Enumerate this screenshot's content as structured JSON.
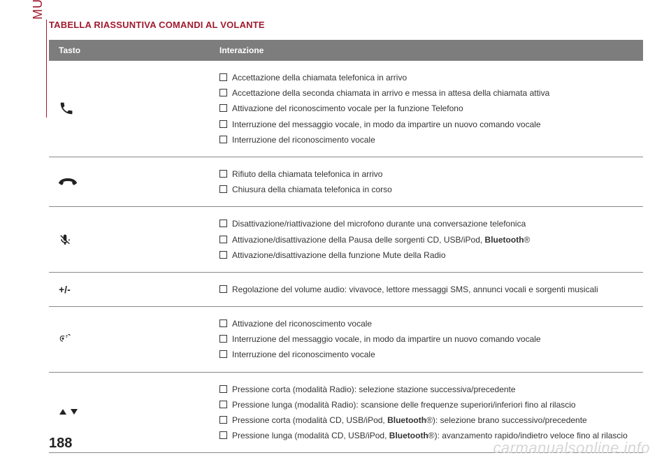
{
  "sidebar_text": "MULTIMEDIA",
  "title": "TABELLA RIASSUNTIVA COMANDI AL VOLANTE",
  "table": {
    "headers": [
      "Tasto",
      "Interazione"
    ],
    "rows": [
      {
        "icon": "phone-answer",
        "items": [
          "Accettazione della chiamata telefonica in arrivo",
          "Accettazione della seconda chiamata in arrivo e messa in attesa della chiamata attiva",
          "Attivazione del riconoscimento vocale per la funzione Telefono",
          "Interruzione del messaggio vocale, in modo da impartire un nuovo comando vocale",
          "Interruzione del riconoscimento vocale"
        ]
      },
      {
        "icon": "phone-hangup",
        "items": [
          "Rifiuto della chiamata telefonica in arrivo",
          "Chiusura della chiamata telefonica in corso"
        ]
      },
      {
        "icon": "mic-mute",
        "items_html": [
          "Disattivazione/riattivazione del microfono durante una conversazione telefonica",
          "Attivazione/disattivazione della Pausa delle sorgenti CD, USB/iPod, <span class=\"bold\">Bluetooth</span>®",
          "Attivazione/disattivazione della funzione Mute della Radio"
        ]
      },
      {
        "icon": "plus-minus",
        "items": [
          "Regolazione del volume audio: vivavoce, lettore messaggi SMS, annunci vocali e sorgenti musicali"
        ]
      },
      {
        "icon": "voice",
        "items": [
          "Attivazione del riconoscimento vocale",
          "Interruzione del messaggio vocale, in modo da impartire un nuovo comando vocale",
          "Interruzione del riconoscimento vocale"
        ]
      },
      {
        "icon": "up-down",
        "items_html": [
          "Pressione corta (modalità Radio): selezione stazione successiva/precedente",
          "Pressione lunga (modalità Radio): scansione delle frequenze superiori/inferiori fino al rilascio",
          "Pressione corta (modalità CD, USB/iPod, <span class=\"bold\">Bluetooth</span>®): selezione brano successivo/precedente",
          "Pressione lunga (modalità CD, USB/iPod, <span class=\"bold\">Bluetooth</span>®): avanzamento rapido/indietro veloce fino al rilascio"
        ]
      }
    ]
  },
  "page_number": "188",
  "watermark": "carmanualsonline.info",
  "colors": {
    "accent": "#a01a2e",
    "header_bg": "#7d7d7d",
    "header_fg": "#ffffff",
    "text": "#333333",
    "border": "#888888",
    "watermark": "#d6d6d6"
  }
}
